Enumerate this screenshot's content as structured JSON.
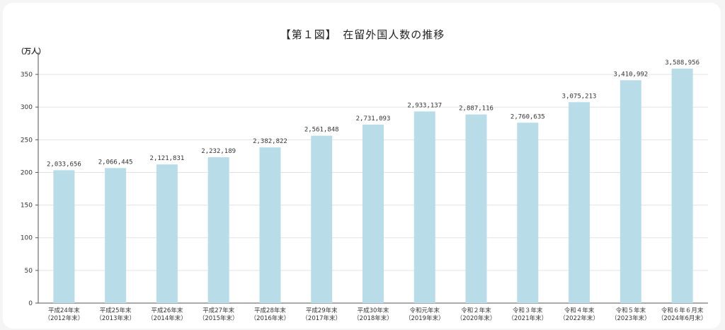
{
  "chart_data": {
    "type": "bar",
    "title": "【第１図】　在留外国人数の推移",
    "ylabel": "（万人）",
    "xlabel": "",
    "ylim": [
      0,
      375
    ],
    "yticks": [
      0,
      50,
      100,
      150,
      200,
      250,
      300,
      350
    ],
    "grid": true,
    "bar_color": "#b8dde9",
    "categories": [
      {
        "line1": "平成24年末",
        "line2": "（2012年末）"
      },
      {
        "line1": "平成25年末",
        "line2": "（2013年末）"
      },
      {
        "line1": "平成26年末",
        "line2": "（2014年末）"
      },
      {
        "line1": "平成27年末",
        "line2": "（2015年末）"
      },
      {
        "line1": "平成28年末",
        "line2": "（2016年末）"
      },
      {
        "line1": "平成29年末",
        "line2": "（2017年末）"
      },
      {
        "line1": "平成30年末",
        "line2": "（2018年末）"
      },
      {
        "line1": "令和元年末",
        "line2": "（2019年末）"
      },
      {
        "line1": "令和２年末",
        "line2": "（2020年末）"
      },
      {
        "line1": "令和３年末",
        "line2": "（2021年末）"
      },
      {
        "line1": "令和４年末",
        "line2": "（2022年末）"
      },
      {
        "line1": "令和５年末",
        "line2": "（2023年末）"
      },
      {
        "line1": "令和６年６月末",
        "line2": "（2024年6月末）"
      }
    ],
    "values": [
      2033656,
      2066445,
      2121831,
      2232189,
      2382822,
      2561848,
      2731093,
      2933137,
      2887116,
      2760635,
      3075213,
      3410992,
      3588956
    ],
    "value_labels": [
      "2,033,656",
      "2,066,445",
      "2,121,831",
      "2,232,189",
      "2,382,822",
      "2,561,848",
      "2,731,093",
      "2,933,137",
      "2,887,116",
      "2,760,635",
      "3,075,213",
      "3,410,992",
      "3,588,956"
    ]
  }
}
